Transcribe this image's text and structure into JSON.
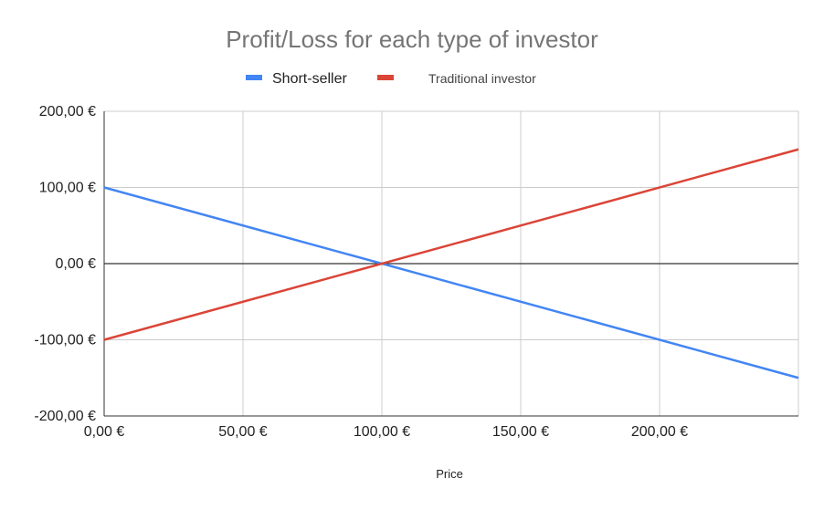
{
  "chart_data": {
    "type": "line",
    "title": "Profit/Loss for each type of investor",
    "xlabel": "Price",
    "ylabel": "",
    "xlim": [
      0,
      250
    ],
    "ylim": [
      -200,
      200
    ],
    "x_ticks": [
      0,
      50,
      100,
      150,
      200
    ],
    "y_ticks": [
      -200,
      -100,
      0,
      100,
      200
    ],
    "x_tick_labels": [
      "0,00 €",
      "50,00 €",
      "100,00 €",
      "150,00 €",
      "200,00 €"
    ],
    "y_tick_labels": [
      "-200,00 €",
      "-100,00 €",
      "0,00 €",
      "100,00 €",
      "200,00 €"
    ],
    "grid": true,
    "legend_position": "top",
    "series": [
      {
        "name": "Short-seller",
        "color": "#4285f4",
        "x": [
          0,
          250
        ],
        "y": [
          100,
          -150
        ]
      },
      {
        "name": "Traditional investor",
        "color": "#db4437",
        "x": [
          0,
          250
        ],
        "y": [
          -100,
          150
        ]
      }
    ]
  }
}
